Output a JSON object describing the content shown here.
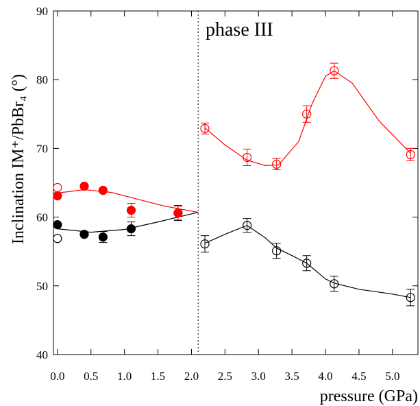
{
  "chart_data": {
    "type": "scatter",
    "ylabel": "Inclination IM⁺/PbBr₄ (°)",
    "xlabel": "pressure (GPa)",
    "annotation": "phase III",
    "xlim": [
      -0.06,
      5.38
    ],
    "ylim": [
      40,
      90
    ],
    "xticks": [
      {
        "value": 0,
        "label": "0.0"
      },
      0.5,
      {
        "value": 1,
        "label": "1.0"
      },
      1.5,
      {
        "value": 2,
        "label": "2.0"
      },
      2.5,
      {
        "value": 3,
        "label": "3.0"
      },
      3.5,
      {
        "value": 4,
        "label": "4.0"
      },
      4.5,
      {
        "value": 5,
        "label": "5.0"
      }
    ],
    "yticks": [
      40,
      50,
      60,
      70,
      80,
      90
    ],
    "divider_x": 2.1,
    "series": [
      {
        "color": "#000000",
        "filled": true,
        "x": [
          0,
          0.4,
          0.68,
          1.1,
          1.8
        ],
        "values": [
          58.9,
          57.5,
          57.1,
          58.3,
          60.6
        ],
        "errors": [
          0,
          0,
          0.8,
          1,
          1.1
        ]
      },
      {
        "color": "#ff0000",
        "filled": true,
        "x": [
          0,
          0.4,
          0.68,
          1.1,
          1.8
        ],
        "values": [
          63.1,
          64.5,
          63.9,
          61,
          60.6
        ],
        "errors": [
          0,
          0,
          0,
          1,
          1
        ]
      },
      {
        "color": "#000000",
        "filled": false,
        "x": [
          0,
          2.2,
          2.83,
          3.27,
          3.72,
          4.13,
          5.27
        ],
        "values": [
          56.9,
          56.1,
          58.8,
          55.1,
          53.3,
          50.3,
          48.3
        ],
        "errors": [
          0,
          1.2,
          1,
          1.1,
          1.1,
          1.1,
          1.2
        ]
      },
      {
        "color": "#ff0000",
        "filled": false,
        "x": [
          0,
          2.2,
          2.83,
          3.27,
          3.72,
          4.13,
          5.27
        ],
        "values": [
          64.3,
          72.9,
          68.7,
          67.7,
          75,
          81.3,
          69.1
        ],
        "errors": [
          0,
          0.8,
          1.2,
          0.8,
          1.2,
          1.1,
          0.9
        ]
      }
    ],
    "fits": [
      {
        "color": "#ff0000",
        "x": [
          0,
          0.4,
          0.8,
          1.2,
          1.6,
          2.1
        ],
        "values": [
          63.5,
          64,
          63.6,
          62.6,
          61.6,
          60.7
        ]
      },
      {
        "color": "#000000",
        "x": [
          0,
          0.5,
          1,
          1.5,
          2.1
        ],
        "values": [
          58.3,
          57.8,
          58.2,
          59.3,
          60.7
        ]
      },
      {
        "color": "#ff0000",
        "x": [
          2.2,
          2.5,
          2.83,
          3.1,
          3.3,
          3.6,
          3.8,
          4.0,
          4.13,
          4.4,
          4.8,
          5.27
        ],
        "values": [
          73,
          70.5,
          68.3,
          67.5,
          67.6,
          71,
          76.5,
          80.5,
          81.3,
          79.5,
          74,
          69.3
        ]
      },
      {
        "color": "#000000",
        "x": [
          2.2,
          2.5,
          2.83,
          3.1,
          3.27,
          3.5,
          3.72,
          4.0,
          4.13,
          4.5,
          5.0,
          5.27
        ],
        "values": [
          56.2,
          57.5,
          58.8,
          57,
          55.5,
          54.4,
          53.3,
          51,
          50.4,
          49.5,
          48.8,
          48.3
        ]
      }
    ]
  }
}
